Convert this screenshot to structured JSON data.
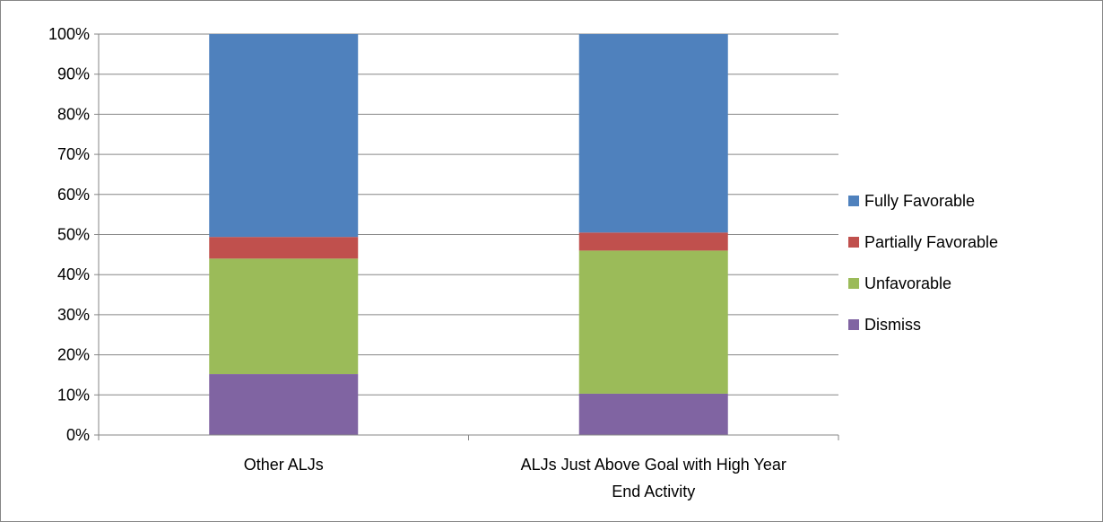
{
  "chart_data": {
    "type": "bar",
    "stacked": true,
    "percent_stacked": true,
    "categories": [
      "Other ALJs",
      "ALJs Just Above Goal with High Year End Activity"
    ],
    "category_label_lines": [
      [
        "Other ALJs"
      ],
      [
        "ALJs Just Above Goal with High Year",
        "End Activity"
      ]
    ],
    "series": [
      {
        "name": "Dismiss",
        "color": "#8064A2",
        "values": [
          15.2,
          10.3
        ]
      },
      {
        "name": "Unfavorable",
        "color": "#9BBB59",
        "values": [
          28.8,
          35.7
        ]
      },
      {
        "name": "Partially Favorable",
        "color": "#C0504D",
        "values": [
          5.4,
          4.5
        ]
      },
      {
        "name": "Fully Favorable",
        "color": "#4F81BD",
        "values": [
          50.6,
          49.5
        ]
      }
    ],
    "legend_order": [
      "Fully Favorable",
      "Partially Favorable",
      "Unfavorable",
      "Dismiss"
    ],
    "y_ticks": [
      "0%",
      "10%",
      "20%",
      "30%",
      "40%",
      "50%",
      "60%",
      "70%",
      "80%",
      "90%",
      "100%"
    ],
    "ylim": [
      0,
      100
    ],
    "grid": true,
    "legend_position": "right",
    "title": "",
    "xlabel": "",
    "ylabel": ""
  }
}
